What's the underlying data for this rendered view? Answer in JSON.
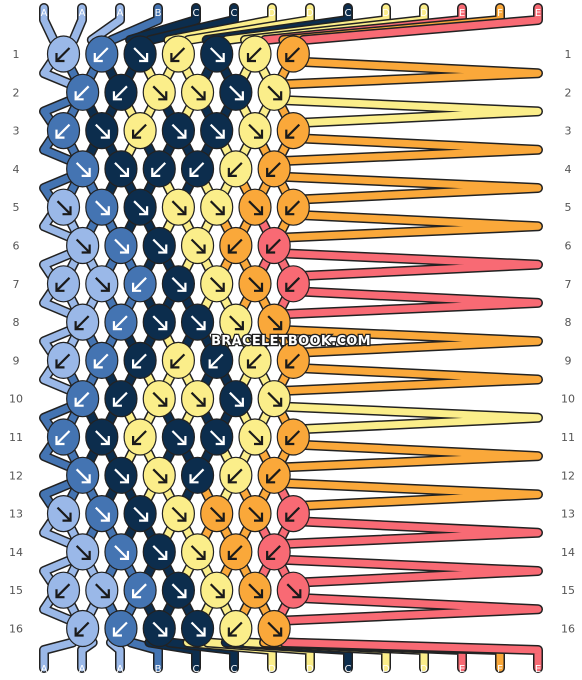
{
  "colors": {
    "A": "#9ab8e8",
    "B": "#4474b2",
    "C": "#0c2d4d",
    "D": "#fbee8a",
    "E": "#f86a74",
    "F": "#faa83a"
  },
  "strands_top": [
    "A",
    "A",
    "A",
    "B",
    "C",
    "C",
    "D",
    "D",
    "C",
    "D",
    "D",
    "E",
    "F",
    "E"
  ],
  "strands_bottom": [
    "A",
    "A",
    "A",
    "B",
    "C",
    "C",
    "D",
    "D",
    "C",
    "D",
    "D",
    "E",
    "F",
    "E"
  ],
  "rows": [
    [
      [
        "A",
        "dl"
      ],
      [
        "B",
        "dl"
      ],
      [
        "C",
        "dr"
      ],
      [
        "D",
        "dl"
      ],
      [
        "C",
        "dr"
      ],
      [
        "D",
        "dl"
      ],
      [
        "F",
        "dl"
      ]
    ],
    [
      [
        "B",
        "dl"
      ],
      [
        "C",
        "dl"
      ],
      [
        "D",
        "dr"
      ],
      [
        "D",
        "dr"
      ],
      [
        "C",
        "dr"
      ],
      [
        "D",
        "dr"
      ]
    ],
    [
      [
        "B",
        "sl"
      ],
      [
        "C",
        "dr"
      ],
      [
        "D",
        "sl"
      ],
      [
        "C",
        "dr"
      ],
      [
        "C",
        "dr"
      ],
      [
        "D",
        "dr"
      ],
      [
        "F",
        "dl"
      ]
    ],
    [
      [
        "B",
        "dr"
      ],
      [
        "C",
        "dr"
      ],
      [
        "C",
        "dl"
      ],
      [
        "C",
        "dl"
      ],
      [
        "D",
        "dl"
      ],
      [
        "F",
        "dl"
      ]
    ],
    [
      [
        "A",
        "dr"
      ],
      [
        "B",
        "dr"
      ],
      [
        "C",
        "dr"
      ],
      [
        "D",
        "dr"
      ],
      [
        "D",
        "dr"
      ],
      [
        "F",
        "dr"
      ],
      [
        "F",
        "sl"
      ]
    ],
    [
      [
        "A",
        "dr"
      ],
      [
        "B",
        "dr"
      ],
      [
        "C",
        "dr"
      ],
      [
        "D",
        "dr"
      ],
      [
        "F",
        "dl"
      ],
      [
        "E",
        "sl"
      ]
    ],
    [
      [
        "A",
        "dl"
      ],
      [
        "A",
        "dr"
      ],
      [
        "B",
        "dl"
      ],
      [
        "C",
        "dr"
      ],
      [
        "D",
        "dr"
      ],
      [
        "F",
        "dr"
      ],
      [
        "E",
        "dl"
      ]
    ],
    [
      [
        "A",
        "dl"
      ],
      [
        "B",
        "dl"
      ],
      [
        "C",
        "dr"
      ],
      [
        "C",
        "dr"
      ],
      [
        "D",
        "dr"
      ],
      [
        "F",
        "dr"
      ]
    ],
    [
      [
        "A",
        "dl"
      ],
      [
        "B",
        "dl"
      ],
      [
        "C",
        "dl"
      ],
      [
        "D",
        "dl"
      ],
      [
        "C",
        "dl"
      ],
      [
        "D",
        "dl"
      ],
      [
        "F",
        "dl"
      ]
    ],
    [
      [
        "B",
        "dl"
      ],
      [
        "C",
        "dl"
      ],
      [
        "D",
        "dr"
      ],
      [
        "D",
        "dr"
      ],
      [
        "C",
        "dr"
      ],
      [
        "D",
        "dr"
      ]
    ],
    [
      [
        "B",
        "sl"
      ],
      [
        "C",
        "dr"
      ],
      [
        "D",
        "sl"
      ],
      [
        "C",
        "dr"
      ],
      [
        "C",
        "dr"
      ],
      [
        "D",
        "dr"
      ],
      [
        "F",
        "dl"
      ]
    ],
    [
      [
        "B",
        "dr"
      ],
      [
        "C",
        "dr"
      ],
      [
        "D",
        "dr"
      ],
      [
        "C",
        "dl"
      ],
      [
        "D",
        "dl"
      ],
      [
        "F",
        "dl"
      ]
    ],
    [
      [
        "A",
        "dr"
      ],
      [
        "B",
        "dr"
      ],
      [
        "C",
        "dr"
      ],
      [
        "D",
        "dr"
      ],
      [
        "F",
        "dr"
      ],
      [
        "F",
        "dr"
      ],
      [
        "E",
        "sl"
      ]
    ],
    [
      [
        "A",
        "dr"
      ],
      [
        "B",
        "dr"
      ],
      [
        "C",
        "dr"
      ],
      [
        "D",
        "dr"
      ],
      [
        "F",
        "dl"
      ],
      [
        "E",
        "sl"
      ]
    ],
    [
      [
        "A",
        "dl"
      ],
      [
        "A",
        "dr"
      ],
      [
        "B",
        "dl"
      ],
      [
        "C",
        "dr"
      ],
      [
        "D",
        "dr"
      ],
      [
        "F",
        "dr"
      ],
      [
        "E",
        "dr"
      ]
    ],
    [
      [
        "A",
        "dl"
      ],
      [
        "B",
        "dl"
      ],
      [
        "C",
        "dr"
      ],
      [
        "C",
        "dr"
      ],
      [
        "D",
        "dl"
      ],
      [
        "F",
        "dr"
      ]
    ]
  ],
  "row_numbers": [
    "1",
    "2",
    "3",
    "4",
    "5",
    "6",
    "7",
    "8",
    "9",
    "10",
    "11",
    "12",
    "13",
    "14",
    "15",
    "16"
  ],
  "watermark": "BRACELETBOOK.COM"
}
